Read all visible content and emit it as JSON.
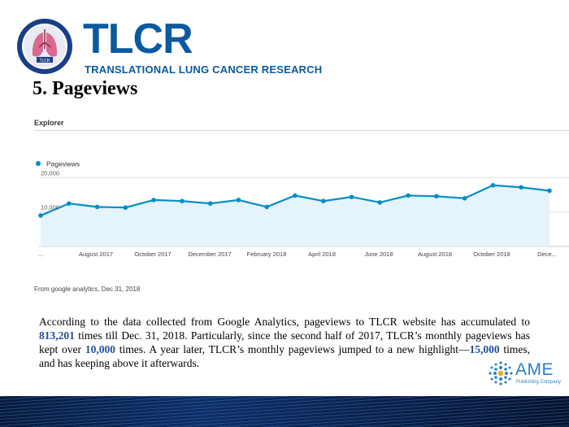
{
  "header": {
    "logo_name": "TLCR",
    "logo_subtitle": "TRANSLATIONAL LUNG CANCER RESEARCH",
    "seal_text": "TLCR"
  },
  "slide_title": "5. Pageviews",
  "explorer_label": "Explorer",
  "chart_data": {
    "type": "line",
    "legend": [
      "Pageviews"
    ],
    "legend_position": "top-left",
    "y_ticks": [
      "20,000",
      "10,000"
    ],
    "x_tick_labels": [
      "...",
      "August 2017",
      "October 2017",
      "December 2017",
      "February 2018",
      "April 2018",
      "June 2018",
      "August 2018",
      "October 2018",
      "Dece..."
    ],
    "series": [
      {
        "name": "Pageviews",
        "color": "#058dc7",
        "values": [
          9000,
          12500,
          11500,
          11300,
          13500,
          13200,
          12500,
          13500,
          11500,
          14800,
          13200,
          14400,
          12800,
          14800,
          14600,
          14000,
          17800,
          17200,
          16200
        ]
      }
    ],
    "ylim": [
      0,
      22000
    ],
    "grid": true,
    "fill": "area"
  },
  "source_note": "From google analytics, Dec 31, 2018",
  "paragraph": {
    "p1": "According to the data collected from Google Analytics, pageviews to TLCR website has accumulated to ",
    "v1": "813,201",
    "p2": " times till Dec. 31, 2018. Particularly, since the second half of 2017, TLCR’s monthly pageviews has kept over ",
    "v2": "10,000",
    "p3": " times. A year later, TLCR’s monthly pageviews jumped to a new highlight—",
    "v3": "15,000",
    "p4": " times, and has keeping above it afterwards."
  },
  "ame_logo": {
    "name": "AME",
    "sub": "Publishing Company"
  },
  "colors": {
    "brand_blue": "#0a5aa0",
    "line": "#058dc7",
    "area": "#e5f3fa",
    "highlight": "#1f4e9a"
  }
}
